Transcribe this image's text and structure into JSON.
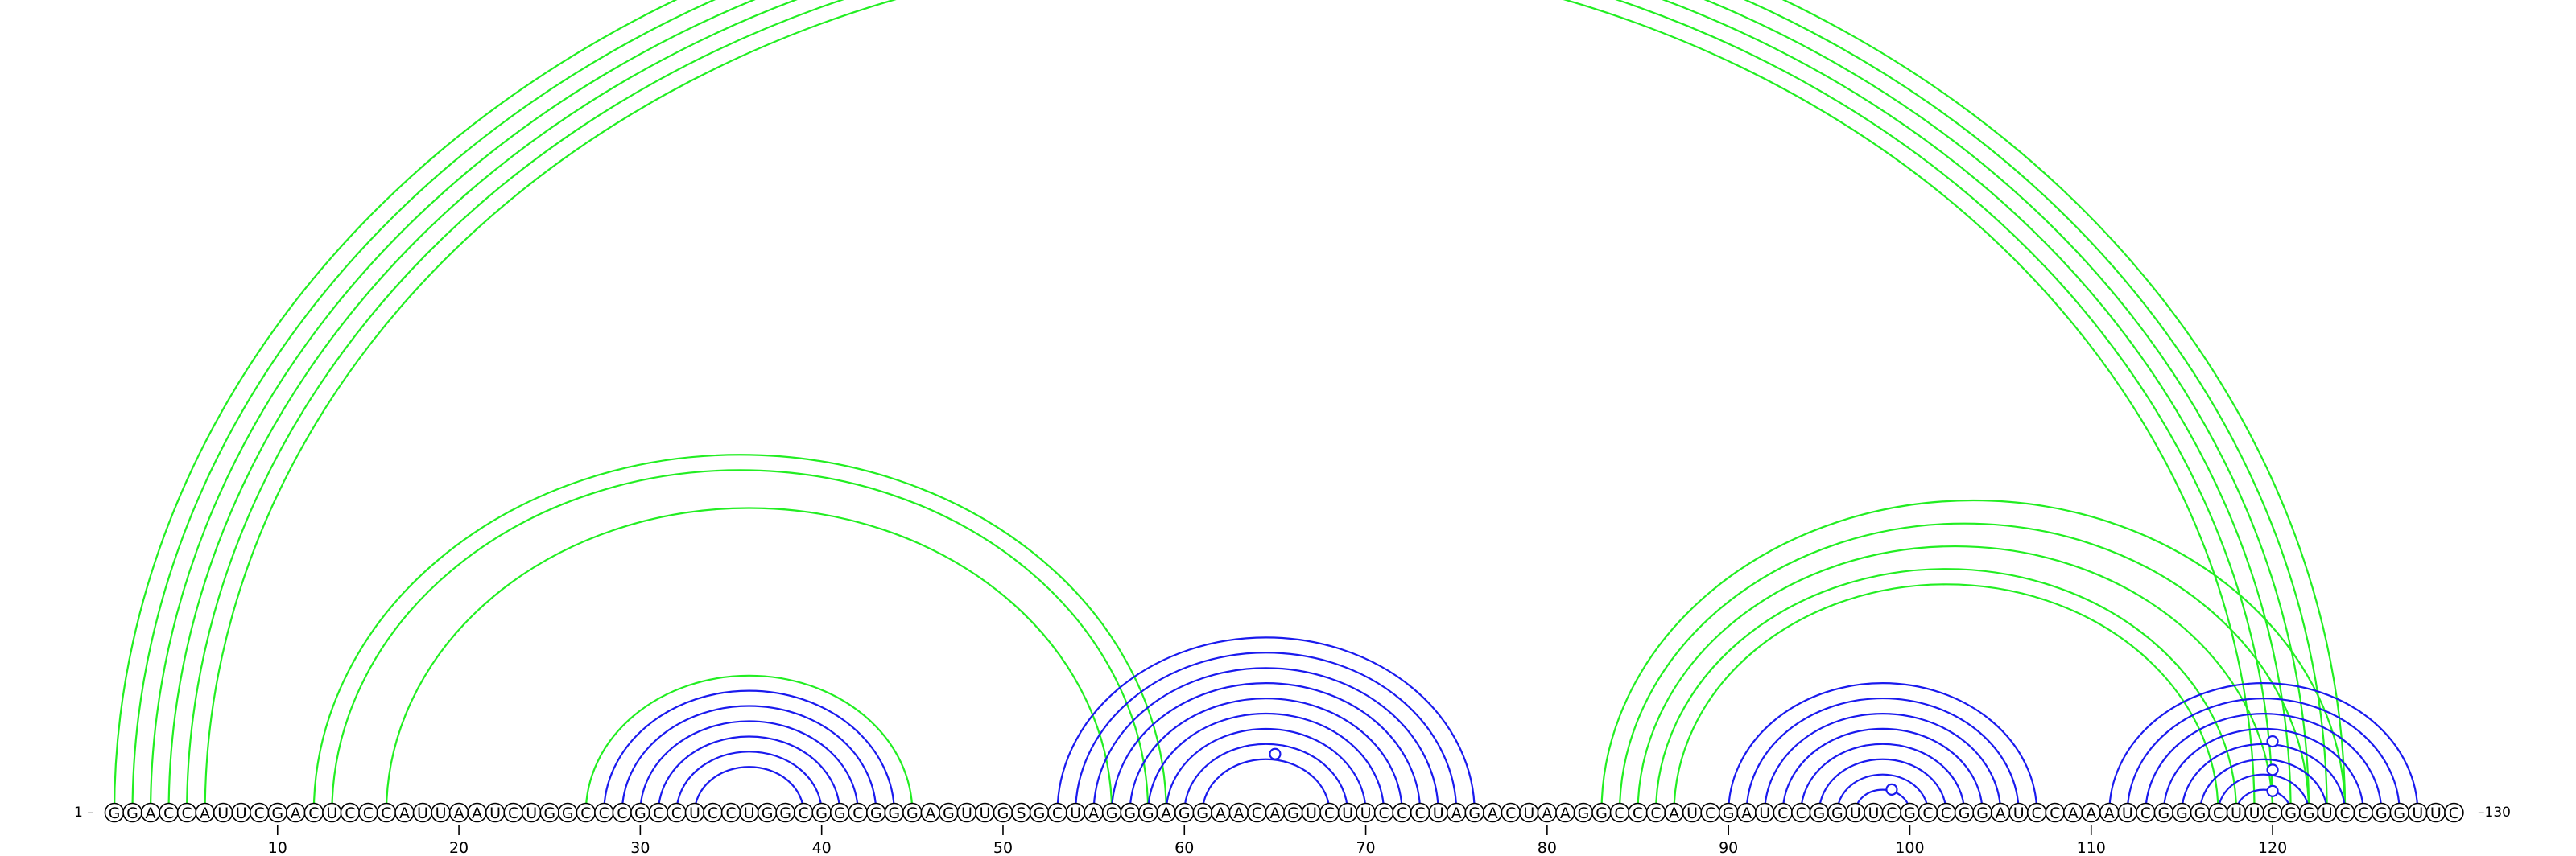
{
  "sequence": "GGACCAUUCGACUCCCAUUAAUCUGGCCCGCCUCCUGGCGGCGGGAGUUGSGCUAGGGAGGAACAGUCUUCCCUAGACUAAGGCCCAUCGAUCCGGUUCGCCGGAUCCAAAUCGGGCUUCGGUCCGGUUC",
  "start_label": "1 –",
  "end_label": "–130",
  "ticks": [
    10,
    20,
    30,
    40,
    50,
    60,
    70,
    80,
    90,
    100,
    110,
    120
  ],
  "colors": {
    "green": "#22ee22",
    "blue": "#1a1aee"
  },
  "pairs": {
    "green": [
      [
        1,
        124
      ],
      [
        2,
        123
      ],
      [
        3,
        122
      ],
      [
        4,
        121
      ],
      [
        5,
        120
      ],
      [
        6,
        119
      ],
      [
        12,
        59
      ],
      [
        13,
        58
      ],
      [
        16,
        56
      ],
      [
        27,
        45
      ],
      [
        83,
        124
      ],
      [
        84,
        122
      ],
      [
        85,
        120
      ],
      [
        86,
        118
      ],
      [
        87,
        117
      ]
    ],
    "blue": [
      [
        28,
        44
      ],
      [
        29,
        43
      ],
      [
        30,
        42
      ],
      [
        31,
        41
      ],
      [
        32,
        40
      ],
      [
        33,
        39
      ],
      [
        53,
        76
      ],
      [
        54,
        75
      ],
      [
        55,
        74
      ],
      [
        56,
        73
      ],
      [
        57,
        72
      ],
      [
        58,
        71
      ],
      [
        59,
        70
      ],
      [
        60,
        69
      ],
      [
        61,
        68
      ],
      [
        90,
        107
      ],
      [
        91,
        106
      ],
      [
        92,
        105
      ],
      [
        93,
        104
      ],
      [
        94,
        103
      ],
      [
        95,
        102
      ],
      [
        96,
        101
      ],
      [
        97,
        100
      ],
      [
        111,
        128
      ],
      [
        112,
        127
      ],
      [
        113,
        126
      ],
      [
        114,
        125
      ],
      [
        115,
        124
      ],
      [
        116,
        123
      ],
      [
        117,
        122
      ],
      [
        118,
        121
      ]
    ]
  },
  "markers": [
    {
      "color": "blue",
      "at": 65,
      "level": 0.62
    },
    {
      "color": "blue",
      "at": 99,
      "level": 0.17
    },
    {
      "color": "blue",
      "at": 120,
      "level": 0.78
    },
    {
      "color": "blue",
      "at": 120,
      "level": 0.42
    },
    {
      "color": "blue",
      "at": 120,
      "level": 0.15
    }
  ]
}
